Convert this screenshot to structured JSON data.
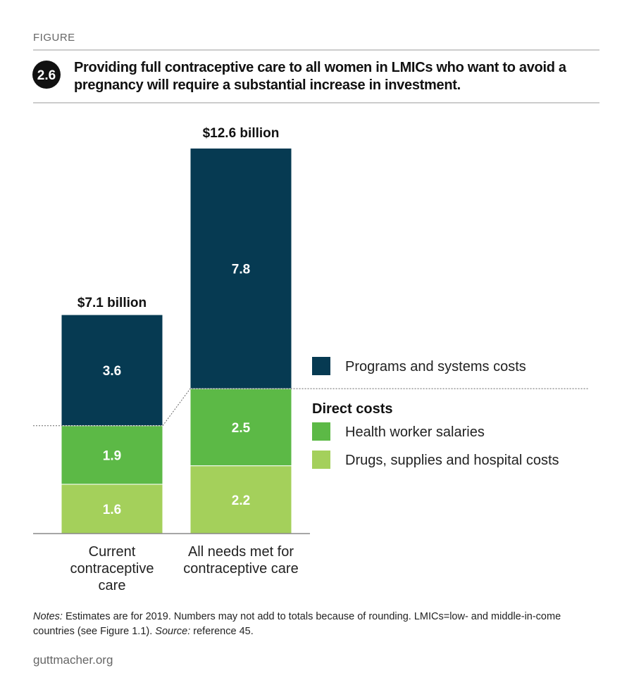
{
  "figure_label": "FIGURE",
  "figure_number": "2.6",
  "footer": "guttmacher.org",
  "notes": {
    "label": "Notes:",
    "text": " Estimates are for 2019. Numbers may not add to totals because of rounding. LMICs=low- and middle-in-come countries (see Figure 1.1). ",
    "source_label": "Source:",
    "source_text": " reference 45."
  },
  "chart_data": {
    "type": "stacked_bar",
    "title": "Providing full contraceptive care to all women in LMICs who want to avoid a pregnancy will require a substantial increase in investment.",
    "categories": [
      "Current contraceptive care",
      "All needs met for contraceptive care"
    ],
    "series": [
      {
        "name": "Drugs, supplies and hospital costs",
        "color": "#a4d05b",
        "values": [
          1.6,
          2.2
        ]
      },
      {
        "name": "Health worker salaries",
        "color": "#5cb946",
        "values": [
          1.9,
          2.5
        ]
      },
      {
        "name": "Programs and systems costs",
        "color": "#063a52",
        "values": [
          3.6,
          7.8
        ]
      }
    ],
    "totals": {
      "values": [
        7.1,
        12.6
      ],
      "value_labels": [
        "$7.1 billion",
        "$12.6 billion"
      ]
    },
    "legend_group_label": "Direct costs"
  }
}
